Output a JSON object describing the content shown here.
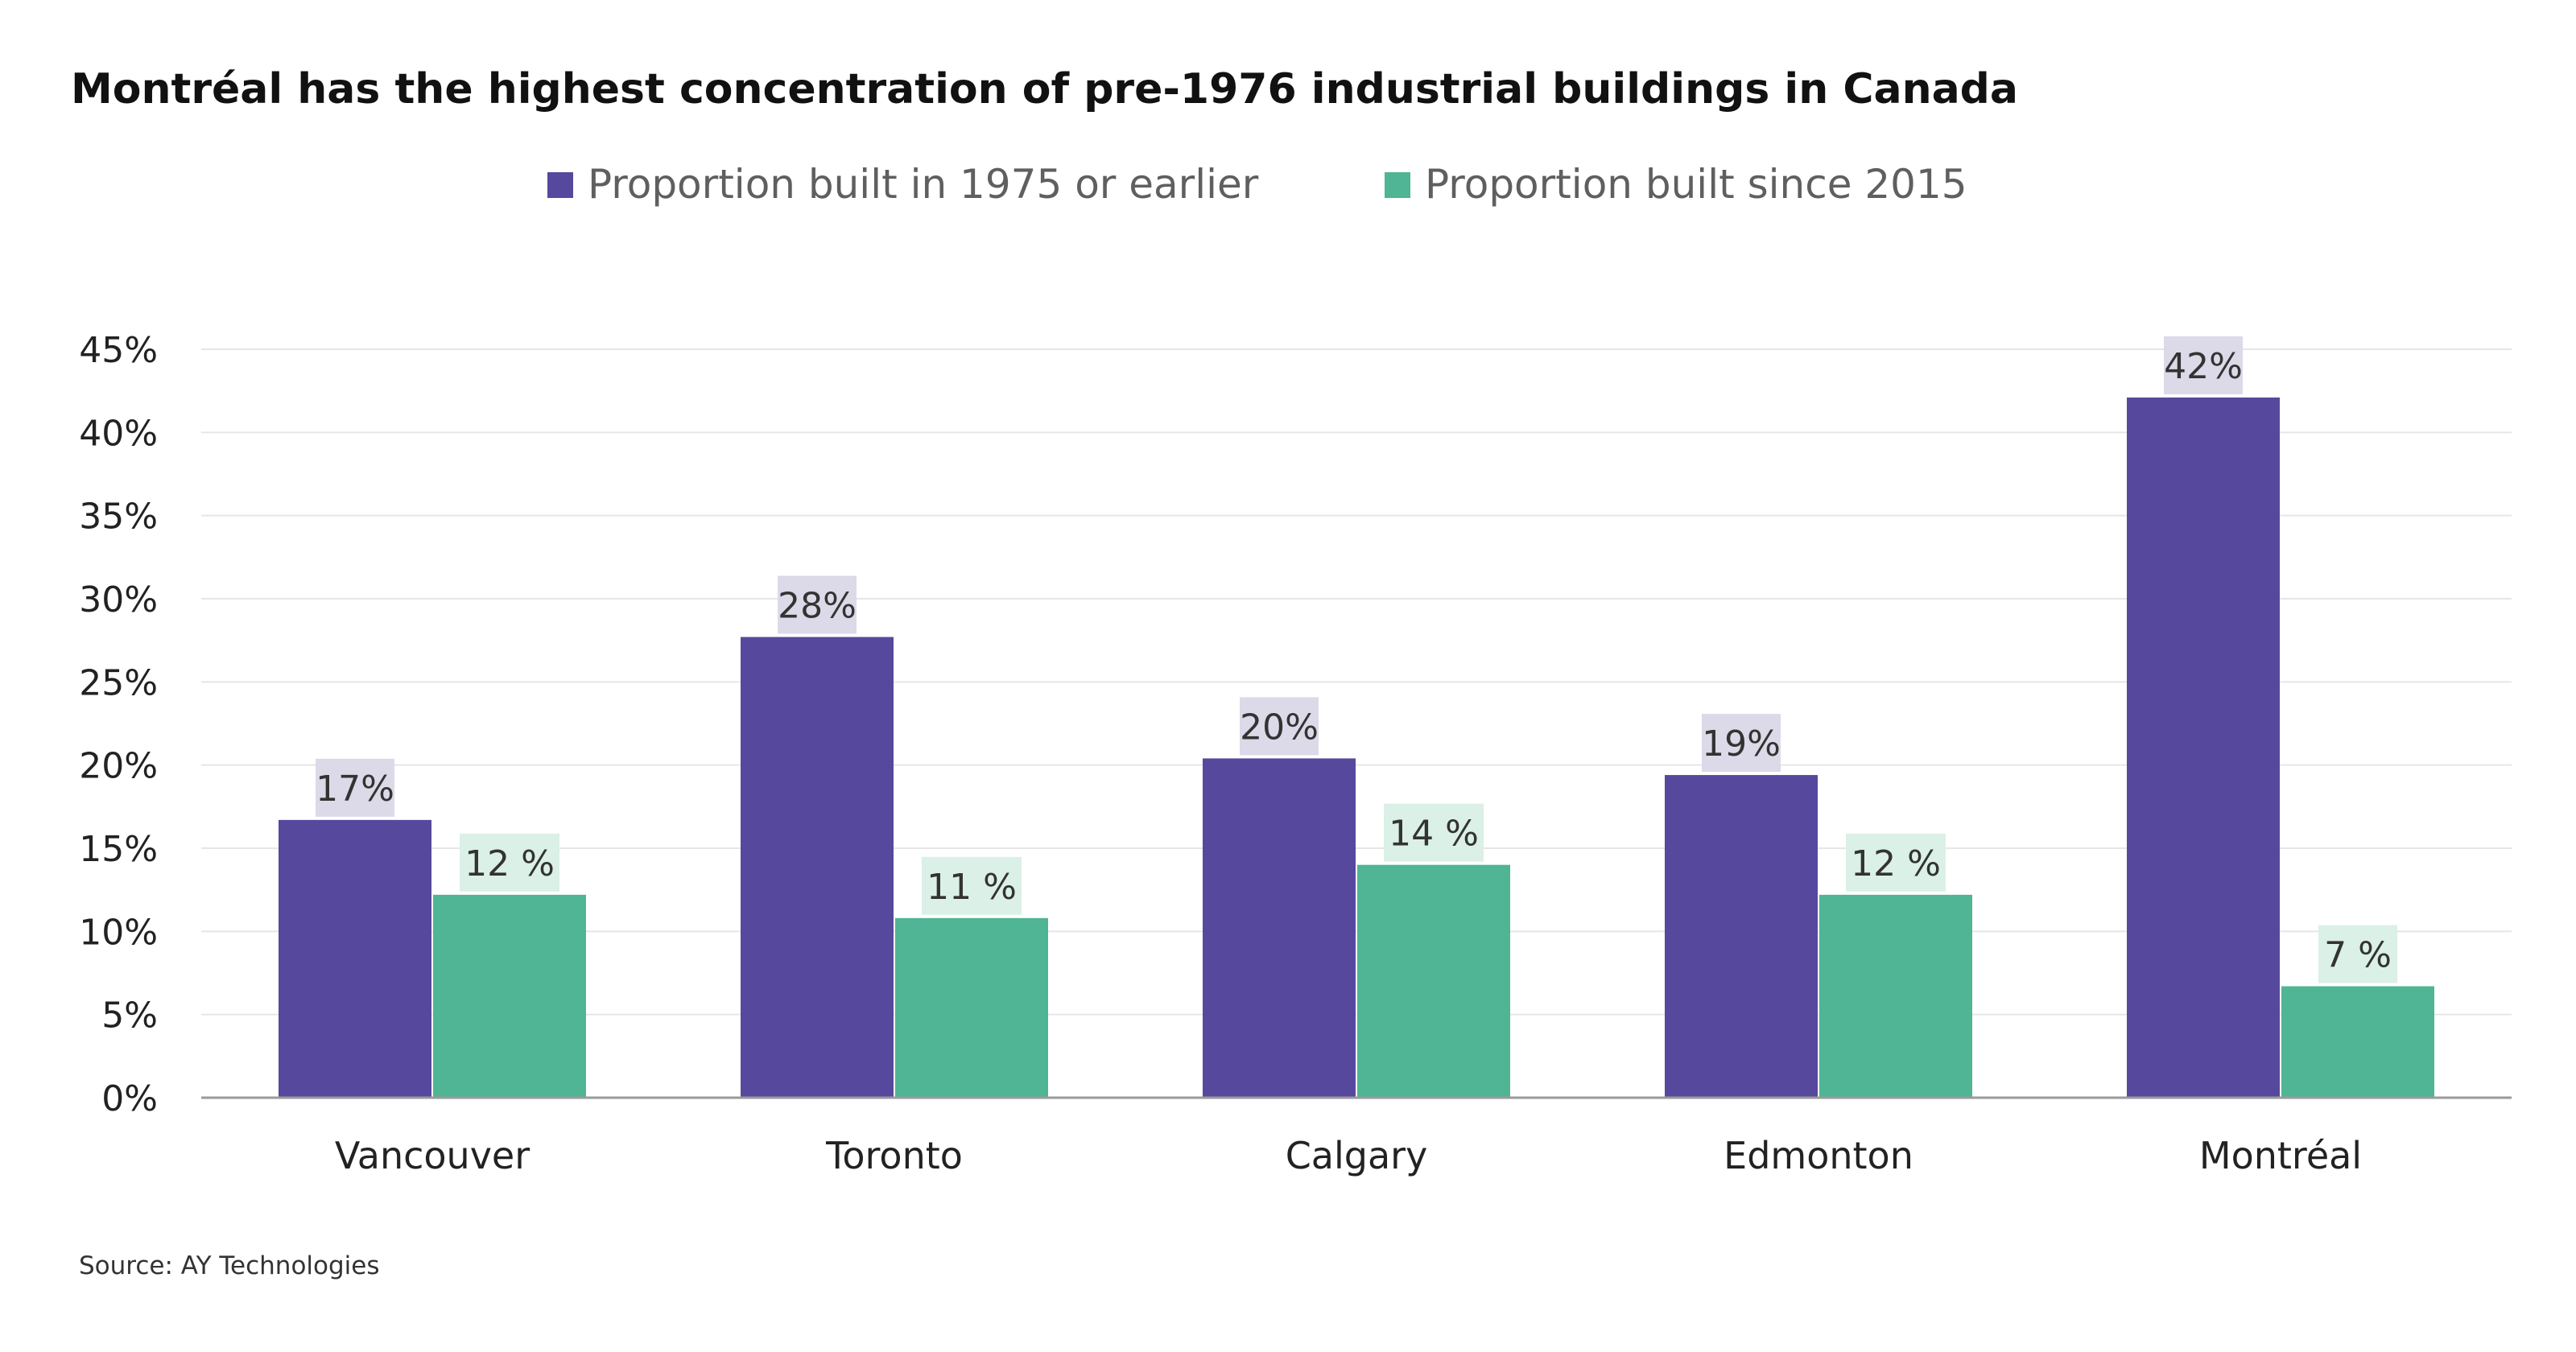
{
  "chart_data": {
    "type": "bar",
    "title": "Montréal has the highest concentration of pre-1976 industrial buildings in Canada",
    "source": "Source: AY Technologies",
    "categories": [
      "Vancouver",
      "Toronto",
      "Calgary",
      "Edmonton",
      "Montréal"
    ],
    "series": [
      {
        "name": "Proportion built in 1975 or earlier",
        "color": "#56489d",
        "label_bg": "#dcd9e8",
        "values": [
          16.7,
          27.7,
          20.4,
          19.4,
          42.1
        ],
        "labels": [
          "17%",
          "28%",
          "20%",
          "19%",
          "42%"
        ]
      },
      {
        "name": "Proportion built since 2015",
        "color": "#4fb594",
        "label_bg": "#dbf0e7",
        "values": [
          12.2,
          10.8,
          14.0,
          12.2,
          6.7
        ],
        "labels": [
          "12 %",
          "11 %",
          "14 %",
          "12 %",
          "7 %"
        ]
      }
    ],
    "ylim": [
      0,
      45
    ],
    "yticks": [
      0,
      5,
      10,
      15,
      20,
      25,
      30,
      35,
      40,
      45
    ],
    "ytick_labels": [
      "0%",
      "5%",
      "10%",
      "15%",
      "20%",
      "25%",
      "30%",
      "35%",
      "40%",
      "45%"
    ],
    "xlabel": "",
    "ylabel": "",
    "grid": true,
    "legend_position": "top-center"
  }
}
